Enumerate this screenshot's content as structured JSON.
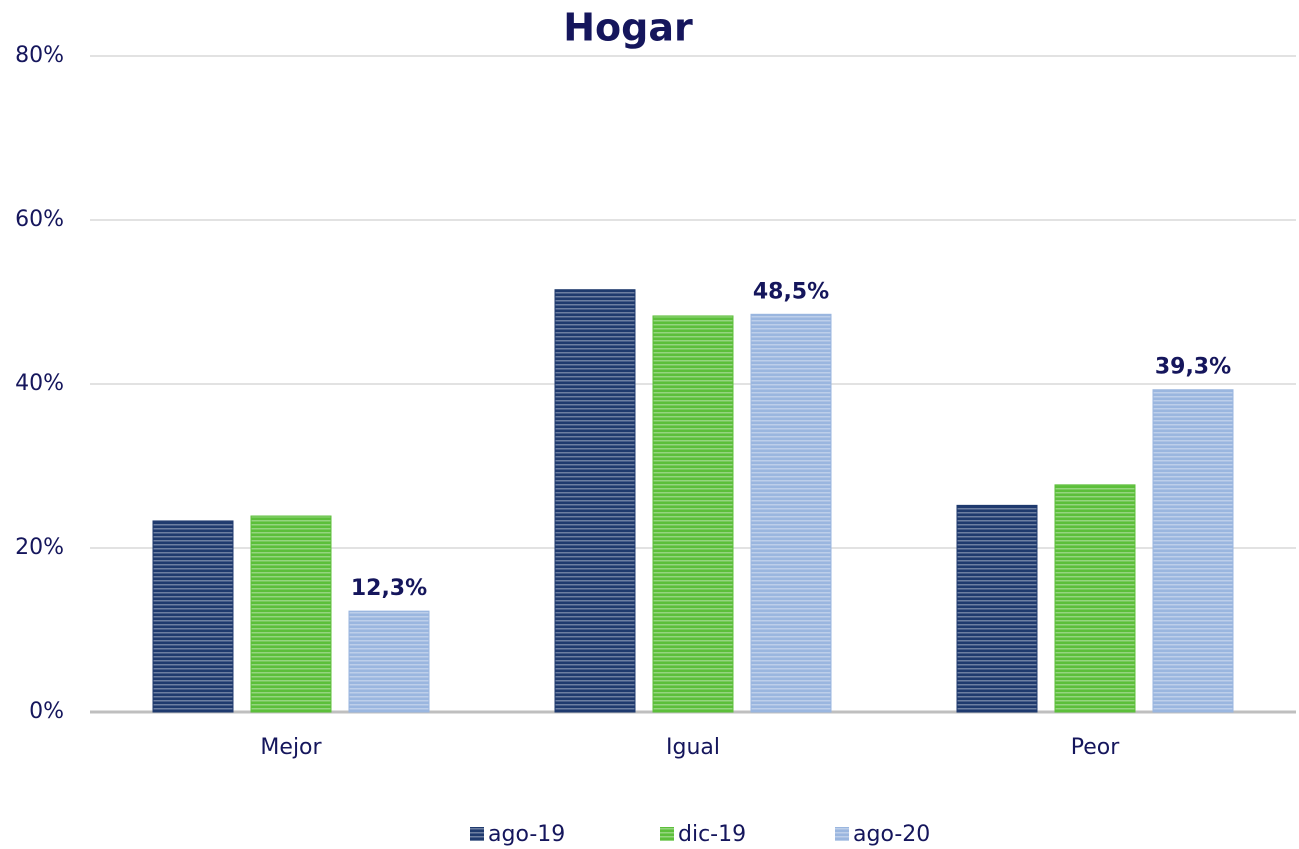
{
  "chart_data": {
    "type": "bar",
    "title": "Hogar",
    "categories": [
      "Mejor",
      "Igual",
      "Peor"
    ],
    "series": [
      {
        "name": "ago-19",
        "color": "#1f3a6e",
        "values": [
          23.3,
          51.5,
          25.2
        ]
      },
      {
        "name": "dic-19",
        "color": "#5cbf3a",
        "values": [
          23.9,
          48.3,
          27.7
        ]
      },
      {
        "name": "ago-20",
        "color": "#9ab6df",
        "values": [
          12.3,
          48.5,
          39.3
        ],
        "value_labels": [
          "12,3%",
          "48,5%",
          "39,3%"
        ]
      }
    ],
    "ylim": [
      0,
      80
    ],
    "yticks": [
      {
        "value": 0,
        "label": "0%"
      },
      {
        "value": 20,
        "label": "20%"
      },
      {
        "value": 40,
        "label": "40%"
      },
      {
        "value": 60,
        "label": "60%"
      },
      {
        "value": 80,
        "label": "80%"
      }
    ],
    "grid": true,
    "legend": "bottom"
  }
}
